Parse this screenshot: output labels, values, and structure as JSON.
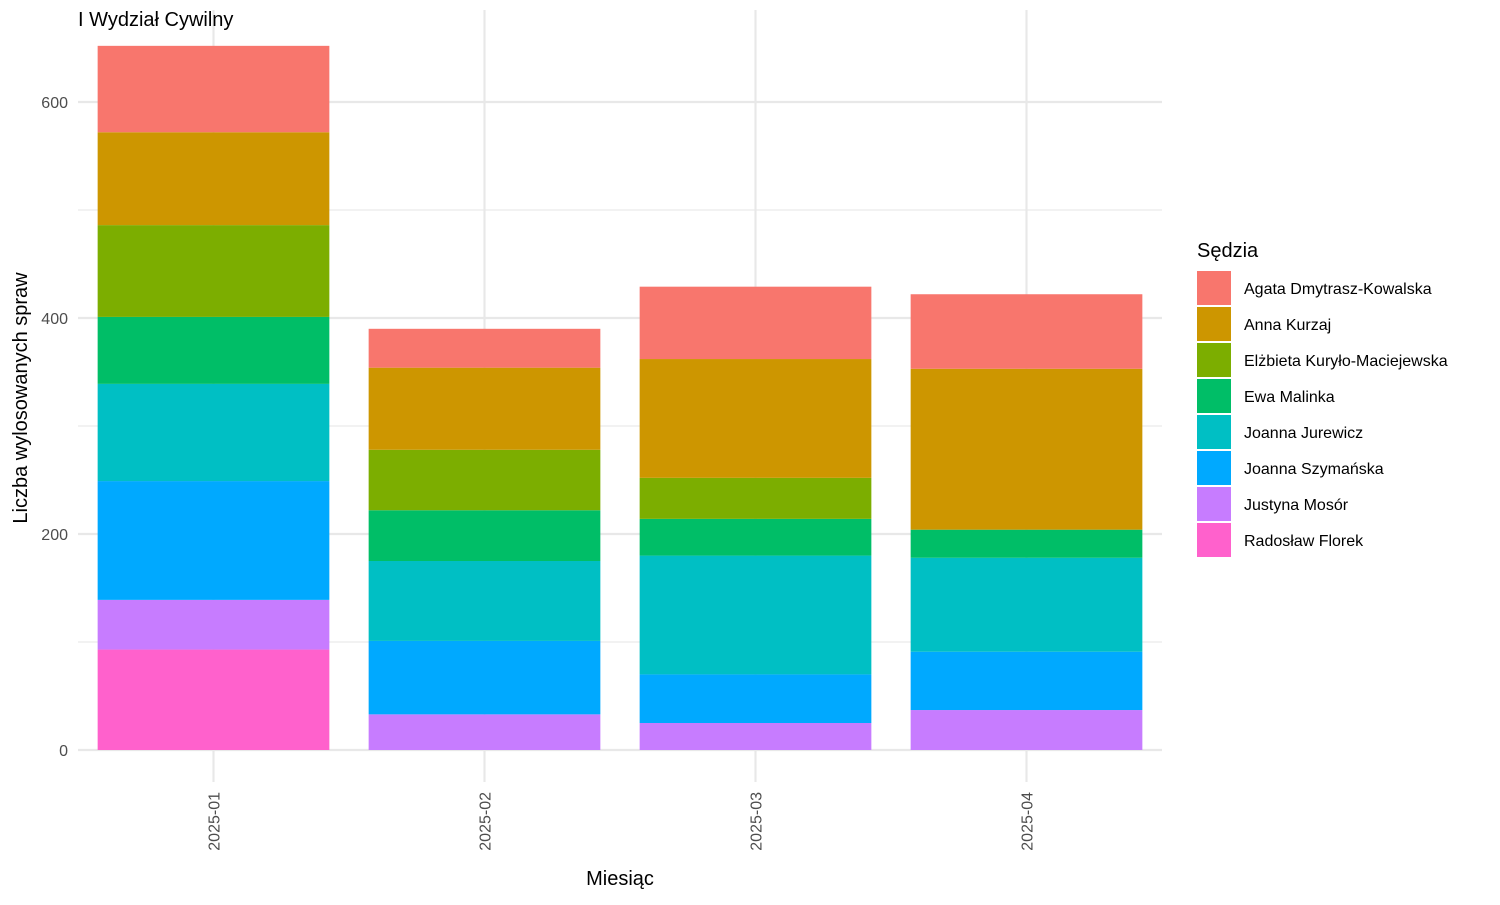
{
  "chart_data": {
    "type": "bar",
    "stacked": true,
    "title": "I Wydział Cywilny",
    "xlabel": "Miesiąc",
    "ylabel": "Liczba wylosowanych spraw",
    "ylim": [
      0,
      665
    ],
    "yticks": [
      0,
      200,
      400,
      600
    ],
    "grid": true,
    "legend_position": "right",
    "legend_title": "Sędzia",
    "categories": [
      "2025-01",
      "2025-02",
      "2025-03",
      "2025-04"
    ],
    "series": [
      {
        "name": "Agata Dmytrasz-Kowalska",
        "color": "#F8766D",
        "values": [
          80,
          36,
          67,
          69
        ]
      },
      {
        "name": "Anna Kurzaj",
        "color": "#CD9600",
        "values": [
          86,
          76,
          110,
          149
        ]
      },
      {
        "name": "Elżbieta Kuryło-Maciejewska",
        "color": "#7CAE00",
        "values": [
          85,
          56,
          38,
          0
        ]
      },
      {
        "name": "Ewa Malinka",
        "color": "#00BE67",
        "values": [
          62,
          47,
          34,
          26
        ]
      },
      {
        "name": "Joanna Jurewicz",
        "color": "#00BFC4",
        "values": [
          90,
          74,
          110,
          87
        ]
      },
      {
        "name": "Joanna Szymańska",
        "color": "#00A9FF",
        "values": [
          110,
          68,
          45,
          54
        ]
      },
      {
        "name": "Justyna Mosór",
        "color": "#C77CFF",
        "values": [
          46,
          33,
          25,
          37
        ]
      },
      {
        "name": "Radosław Florek",
        "color": "#FF61CC",
        "values": [
          93,
          0,
          0,
          0
        ]
      }
    ]
  }
}
